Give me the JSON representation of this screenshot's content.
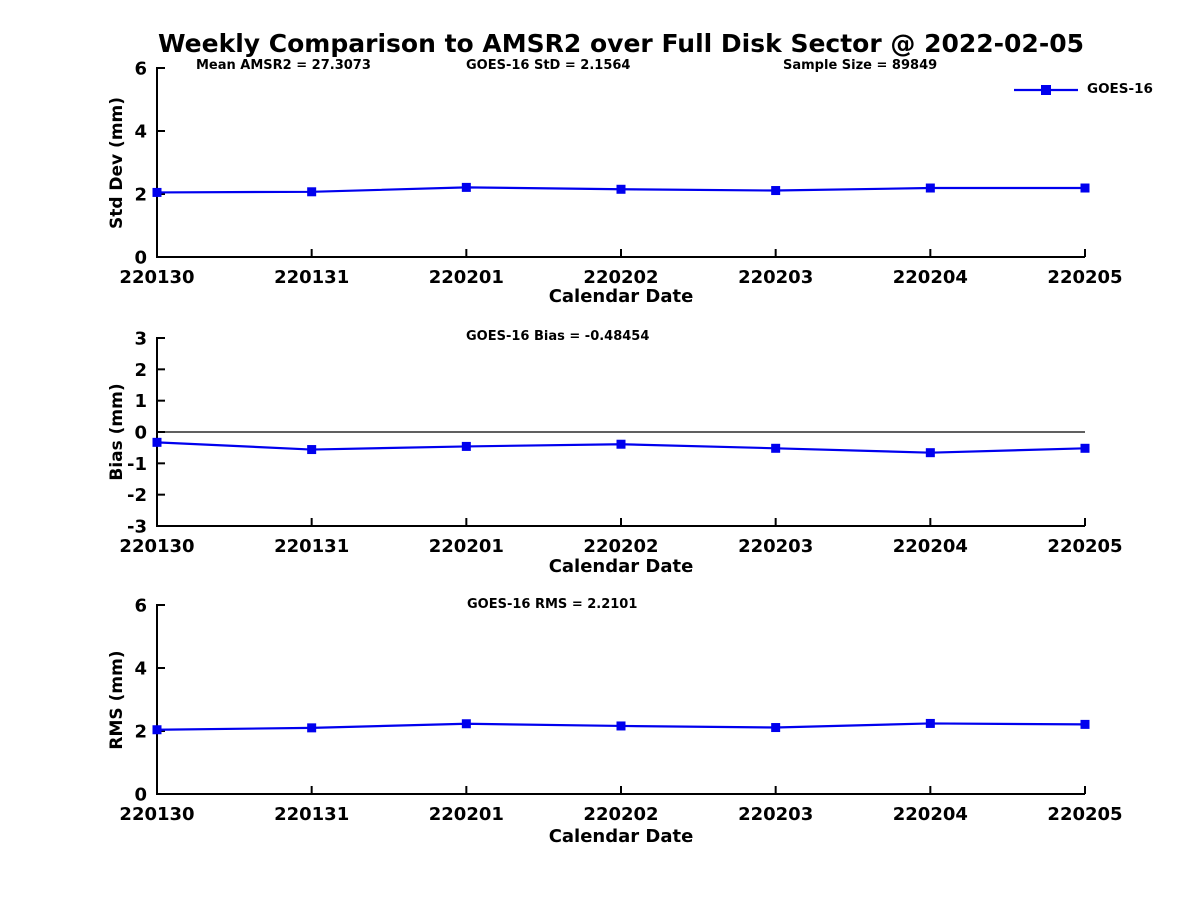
{
  "figure": {
    "title": "Weekly Comparison to AMSR2 over Full Disk Sector @ 2022-02-05",
    "background_color": "#ffffff",
    "axis_color": "#000000",
    "line_color": "#0000ee",
    "legend": {
      "label": "GOES-16",
      "position": "top-right",
      "marker": "filled-square",
      "box": false
    }
  },
  "chart_data": [
    {
      "id": "std-dev",
      "type": "line",
      "title": "Weekly Comparison to AMSR2 over Full Disk Sector @ 2022-02-05",
      "annotations": [
        "Mean AMSR2 = 27.3073",
        "GOES-16 StD = 2.1564",
        "Sample Size = 89849"
      ],
      "xlabel": "Calendar Date",
      "ylabel": "Std Dev (mm)",
      "categories": [
        "220130",
        "220131",
        "220201",
        "220202",
        "220203",
        "220204",
        "220205"
      ],
      "series": [
        {
          "name": "GOES-16",
          "color": "#0000ee",
          "marker": "square",
          "values": [
            2.05,
            2.07,
            2.21,
            2.15,
            2.11,
            2.19,
            2.19
          ]
        }
      ],
      "ylim": [
        0,
        6
      ],
      "yticks": [
        0,
        2,
        4,
        6
      ],
      "grid": false,
      "zero_line": false,
      "legend": {
        "label": "GOES-16",
        "position": "top-right"
      }
    },
    {
      "id": "bias",
      "type": "line",
      "subtitle": "GOES-16 Bias  = -0.48454",
      "xlabel": "Calendar Date",
      "ylabel": "Bias (mm)",
      "categories": [
        "220130",
        "220131",
        "220201",
        "220202",
        "220203",
        "220204",
        "220205"
      ],
      "series": [
        {
          "name": "GOES-16",
          "color": "#0000ee",
          "marker": "square",
          "values": [
            -0.33,
            -0.56,
            -0.46,
            -0.39,
            -0.52,
            -0.66,
            -0.52
          ]
        }
      ],
      "ylim": [
        -3,
        3
      ],
      "yticks": [
        3,
        2,
        1,
        0,
        -1,
        -2,
        -3
      ],
      "grid": false,
      "zero_line": true
    },
    {
      "id": "rms",
      "type": "line",
      "subtitle": "GOES-16 RMS = 2.2101",
      "xlabel": "Calendar Date",
      "ylabel": "RMS (mm)",
      "categories": [
        "220130",
        "220131",
        "220201",
        "220202",
        "220203",
        "220204",
        "220205"
      ],
      "series": [
        {
          "name": "GOES-16",
          "color": "#0000ee",
          "marker": "square",
          "values": [
            2.04,
            2.1,
            2.23,
            2.16,
            2.11,
            2.24,
            2.21
          ]
        }
      ],
      "ylim": [
        0,
        6
      ],
      "yticks": [
        0,
        2,
        4,
        6
      ],
      "grid": false,
      "zero_line": false
    }
  ]
}
